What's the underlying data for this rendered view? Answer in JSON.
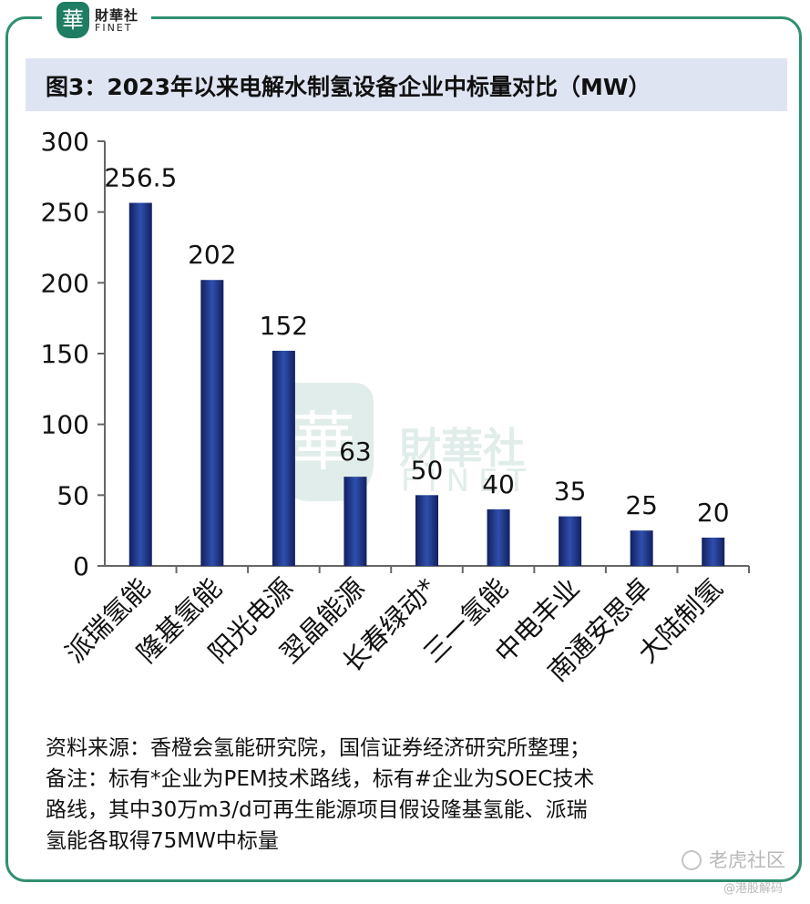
{
  "brand": {
    "logo_char": "華",
    "name_cn": "財華社",
    "name_en": "FINET"
  },
  "chart_data": {
    "type": "bar",
    "title": "图3：2023年以来电解水制氢设备企业中标量对比（MW）",
    "categories": [
      "派瑞氢能",
      "隆基氢能",
      "阳光电源",
      "翌晶能源",
      "长春绿动*",
      "三一氢能",
      "中电丰业",
      "南通安思卓",
      "大陆制氢"
    ],
    "values": [
      256.5,
      202,
      152,
      63,
      50,
      40,
      35,
      25,
      20
    ],
    "value_labels": [
      "256.5",
      "202",
      "152",
      "63",
      "50",
      "40",
      "35",
      "25",
      "20"
    ],
    "ylim": [
      0,
      300
    ],
    "yticks": [
      0,
      50,
      100,
      150,
      200,
      250,
      300
    ],
    "xlabel": "",
    "ylabel": "",
    "grid": false,
    "legend": "none",
    "bar_color_dark": "#12205e",
    "bar_color_light": "#2f4fae"
  },
  "notes": {
    "line1": "资料来源：香橙会氢能研究院，国信证券经济研究所整理；",
    "line2": "备注：标有*企业为PEM技术路线，标有#企业为SOEC技术",
    "line3": "路线，其中30万m3/d可再生能源项目假设隆基氢能、派瑞",
    "line4": "氢能各取得75MW中标量"
  },
  "watermarks": {
    "tiger": "老虎社区",
    "handle": "@港股解码"
  }
}
